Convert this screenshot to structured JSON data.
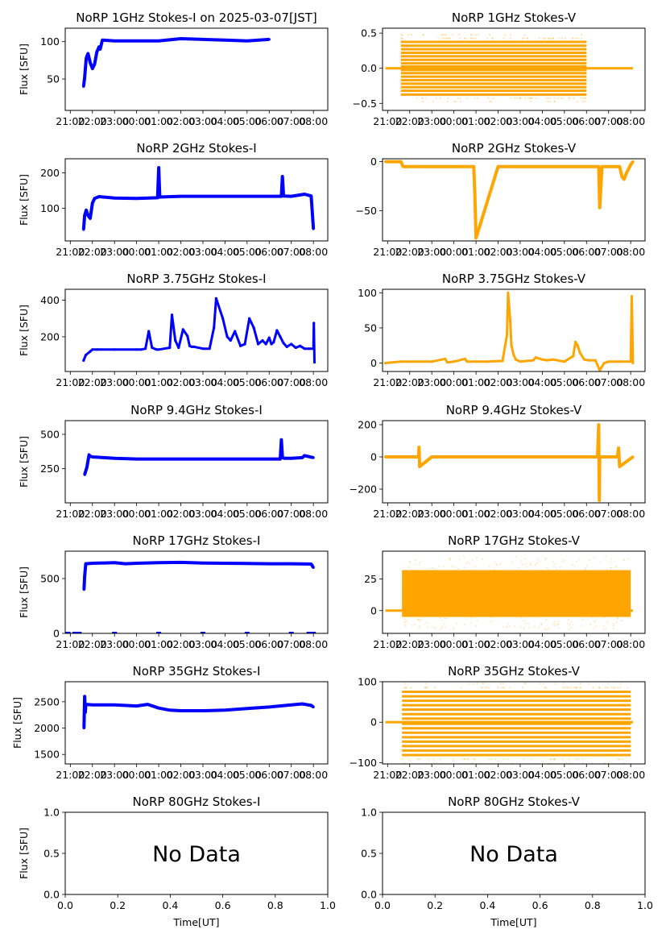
{
  "figure": {
    "ylabel": "Flux [SFU]",
    "xlabel": "Time[UT]",
    "no_data_text": "No Data",
    "time_ticks": [
      "21:00",
      "22:00",
      "23:00",
      "00:00",
      "01:00",
      "02:00",
      "03:00",
      "04:00",
      "05:00",
      "06:00",
      "07:00",
      "08:00"
    ],
    "time_tick_hours": [
      0,
      1,
      2,
      3,
      4,
      5,
      6,
      7,
      8,
      9,
      10,
      11
    ],
    "time_xlim_hours_from_2100": [
      -0.23,
      11.65
    ],
    "colors": {
      "stokes_i": "#0000ff",
      "stokes_v": "#ffa500",
      "axes": "#000000"
    }
  },
  "chart_data": [
    {
      "type": "scatter",
      "title": "NoRP 1GHz Stokes-I on 2025-03-07[JST]",
      "series_name": "Stokes-I",
      "ylabel": "Flux [SFU]",
      "ylim": [
        8,
        118
      ],
      "yticks": [
        50,
        100
      ],
      "ytick_labels": [
        "50",
        "100"
      ],
      "x_hours": [
        0.6,
        0.65,
        0.72,
        0.8,
        0.9,
        1.0,
        1.1,
        1.2,
        1.3,
        1.35,
        1.45,
        2.0,
        3.0,
        4.0,
        5.0,
        6.0,
        7.0,
        8.0,
        9.0
      ],
      "values": [
        40,
        52,
        78,
        84,
        72,
        64,
        70,
        86,
        93,
        90,
        102,
        101,
        101,
        101,
        104,
        103,
        102,
        101,
        103
      ]
    },
    {
      "type": "scatter",
      "title": "NoRP 1GHz Stokes-V",
      "series_name": "Stokes-V",
      "ylim": [
        -0.6,
        0.57
      ],
      "yticks": [
        -0.5,
        0.0,
        0.5
      ],
      "ytick_labels": [
        "−0.5",
        "0.0",
        "0.5"
      ],
      "pattern": "quantized_bands",
      "band_levels": [
        -0.375,
        -0.32,
        -0.27,
        -0.22,
        -0.17,
        -0.12,
        -0.07,
        -0.025,
        0.025,
        0.07,
        0.12,
        0.17,
        0.22,
        0.27,
        0.32,
        0.375
      ],
      "band_x_range_hours": [
        0.6,
        9.0
      ],
      "baseline_x_range_hours": [
        -0.1,
        11.1
      ],
      "baseline_value": 0.0
    },
    {
      "type": "scatter",
      "title": "NoRP 2GHz Stokes-I",
      "series_name": "Stokes-I",
      "ylabel": "Flux [SFU]",
      "ylim": [
        8,
        240
      ],
      "yticks": [
        100,
        200
      ],
      "ytick_labels": [
        "100",
        "200"
      ],
      "x_hours": [
        0.6,
        0.65,
        0.72,
        0.8,
        0.9,
        1.0,
        1.1,
        1.3,
        2.0,
        3.0,
        3.95,
        4.0,
        4.05,
        5.0,
        6.0,
        7.0,
        9.0,
        9.55,
        9.6,
        9.65,
        10.0,
        10.6,
        10.9,
        11.0
      ],
      "values": [
        40,
        80,
        95,
        80,
        72,
        115,
        128,
        133,
        129,
        128,
        130,
        215,
        132,
        134,
        134,
        134,
        134,
        134,
        190,
        135,
        134,
        140,
        135,
        42
      ]
    },
    {
      "type": "scatter",
      "title": "NoRP 2GHz Stokes-V",
      "series_name": "Stokes-V",
      "ylim": [
        -81,
        3
      ],
      "yticks": [
        -50,
        0
      ],
      "ytick_labels": [
        "−50",
        "0"
      ],
      "x_hours": [
        -0.1,
        0.6,
        0.7,
        1.0,
        2.0,
        3.0,
        3.9,
        3.95,
        4.0,
        5.0,
        6.0,
        7.0,
        9.0,
        9.55,
        9.6,
        9.7,
        10.0,
        10.5,
        10.6,
        10.7,
        10.8,
        11.0,
        11.1
      ],
      "values": [
        0,
        0,
        -5,
        -5,
        -5,
        -5,
        -5,
        -35,
        -78,
        -5,
        -5,
        -5,
        -5,
        -5,
        -47,
        -5,
        -5,
        -5,
        -15,
        -18,
        -12,
        -3,
        0
      ]
    },
    {
      "type": "line",
      "title": "NoRP 3.75GHz Stokes-I",
      "series_name": "Stokes-I",
      "ylabel": "Flux [SFU]",
      "ylim": [
        10,
        460
      ],
      "yticks": [
        200,
        400
      ],
      "ytick_labels": [
        "200",
        "400"
      ],
      "x_hours": [
        0.6,
        0.7,
        0.9,
        1.0,
        1.2,
        2.0,
        3.0,
        3.2,
        3.4,
        3.55,
        3.7,
        3.9,
        4.0,
        4.5,
        4.6,
        4.75,
        4.9,
        5.1,
        5.3,
        5.4,
        5.5,
        5.6,
        6.0,
        6.3,
        6.5,
        6.6,
        6.9,
        7.1,
        7.25,
        7.45,
        7.7,
        7.9,
        8.1,
        8.3,
        8.5,
        8.7,
        8.85,
        9.0,
        9.1,
        9.2,
        9.35,
        9.5,
        9.65,
        9.8,
        10.0,
        10.2,
        10.4,
        10.6,
        10.8,
        11.0,
        11.02,
        11.05
      ],
      "values": [
        70,
        100,
        120,
        130,
        130,
        130,
        130,
        130,
        135,
        230,
        140,
        130,
        130,
        140,
        320,
        180,
        140,
        240,
        205,
        150,
        145,
        145,
        135,
        135,
        250,
        410,
        300,
        200,
        180,
        230,
        150,
        160,
        300,
        250,
        160,
        180,
        160,
        195,
        160,
        170,
        235,
        200,
        165,
        145,
        160,
        140,
        150,
        135,
        135,
        135,
        275,
        60
      ]
    },
    {
      "type": "line",
      "title": "NoRP 3.75GHz Stokes-V",
      "series_name": "Stokes-V",
      "ylim": [
        -12,
        105
      ],
      "yticks": [
        0,
        50,
        100
      ],
      "ytick_labels": [
        "0",
        "50",
        "100"
      ],
      "x_hours": [
        -0.1,
        0.6,
        1.0,
        2.0,
        2.6,
        2.7,
        3.0,
        3.5,
        3.6,
        4.0,
        4.5,
        5.2,
        5.4,
        5.45,
        5.5,
        5.55,
        5.6,
        5.7,
        5.8,
        6.0,
        6.6,
        6.7,
        7.0,
        7.2,
        7.5,
        8.0,
        8.4,
        8.5,
        8.6,
        8.7,
        8.9,
        9.1,
        9.4,
        9.6,
        9.8,
        10.0,
        10.5,
        11.0,
        11.05,
        11.1
      ],
      "values": [
        0,
        2,
        2,
        2,
        6,
        1,
        2,
        6,
        2,
        2,
        2,
        3,
        40,
        100,
        80,
        60,
        25,
        12,
        5,
        2,
        4,
        8,
        5,
        4,
        5,
        2,
        10,
        30,
        25,
        15,
        5,
        4,
        4,
        -10,
        0,
        2,
        2,
        2,
        95,
        0
      ]
    },
    {
      "type": "scatter",
      "title": "NoRP 9.4GHz Stokes-I",
      "series_name": "Stokes-I",
      "ylabel": "Flux [SFU]",
      "ylim": [
        0,
        600
      ],
      "yticks": [
        250,
        500
      ],
      "ytick_labels": [
        "250",
        "500"
      ],
      "x_hours": [
        0.65,
        0.75,
        0.85,
        0.9,
        1.0,
        1.5,
        2.0,
        3.0,
        4.0,
        5.0,
        6.0,
        7.0,
        8.0,
        9.0,
        9.4,
        9.5,
        9.55,
        9.6,
        9.7,
        10.0,
        10.5,
        10.6,
        11.0
      ],
      "values": [
        205,
        260,
        350,
        340,
        335,
        330,
        325,
        320,
        320,
        320,
        320,
        320,
        320,
        320,
        320,
        320,
        460,
        330,
        325,
        325,
        330,
        345,
        330
      ]
    },
    {
      "type": "scatter",
      "title": "NoRP 9.4GHz Stokes-V",
      "series_name": "Stokes-V",
      "ylim": [
        -285,
        225
      ],
      "yticks": [
        -200,
        0,
        200
      ],
      "ytick_labels": [
        "−200",
        "0",
        "200"
      ],
      "x_hours": [
        -0.1,
        0.6,
        1.4,
        1.42,
        1.45,
        2.0,
        4.0,
        6.0,
        8.0,
        9.5,
        9.55,
        9.58,
        9.6,
        9.7,
        10.4,
        10.45,
        10.5,
        11.1
      ],
      "values": [
        0,
        0,
        0,
        60,
        -60,
        0,
        0,
        0,
        0,
        0,
        200,
        -270,
        0,
        0,
        0,
        55,
        -60,
        0
      ]
    },
    {
      "type": "scatter",
      "title": "NoRP 17GHz Stokes-I",
      "series_name": "Stokes-I",
      "ylabel": "Flux [SFU]",
      "ylim": [
        0,
        750
      ],
      "yticks": [
        0,
        500
      ],
      "ytick_labels": [
        "0",
        "500"
      ],
      "x_hours": [
        0.62,
        0.65,
        0.7,
        1.0,
        2.0,
        2.5,
        3.0,
        4.0,
        5.0,
        6.0,
        7.0,
        8.0,
        9.0,
        10.0,
        10.9,
        11.0
      ],
      "values": [
        400,
        520,
        635,
        640,
        645,
        635,
        640,
        645,
        648,
        642,
        640,
        638,
        635,
        635,
        632,
        600
      ],
      "zero_level_points_hours": [
        -0.1,
        0.2,
        0.4,
        2.0,
        4.0,
        6.0,
        8.0,
        10.0,
        10.8,
        11.0
      ]
    },
    {
      "type": "scatter",
      "title": "NoRP 17GHz Stokes-V",
      "series_name": "Stokes-V",
      "ylim": [
        -18,
        47
      ],
      "yticks": [
        0,
        25
      ],
      "ytick_labels": [
        "0",
        "25"
      ],
      "pattern": "dense_noise",
      "noise_center": 12,
      "noise_range": [
        -5,
        32
      ],
      "outlier_range": [
        -15,
        43
      ],
      "band_x_range_hours": [
        0.65,
        11.0
      ],
      "baseline_x_range_hours": [
        -0.1,
        11.1
      ],
      "baseline_value": 0
    },
    {
      "type": "scatter",
      "title": "NoRP 35GHz Stokes-I",
      "series_name": "Stokes-I",
      "ylabel": "Flux [SFU]",
      "ylim": [
        1320,
        2880
      ],
      "yticks": [
        1500,
        2000,
        2500
      ],
      "ytick_labels": [
        "1500",
        "2000",
        "2500"
      ],
      "x_hours": [
        0.62,
        0.65,
        0.68,
        0.7,
        1.0,
        2.0,
        3.0,
        3.5,
        4.0,
        4.5,
        5.0,
        6.0,
        7.0,
        8.0,
        9.0,
        10.0,
        10.5,
        10.9,
        11.0
      ],
      "values": [
        2000,
        2600,
        2300,
        2450,
        2440,
        2440,
        2420,
        2450,
        2380,
        2340,
        2330,
        2330,
        2340,
        2370,
        2400,
        2440,
        2460,
        2430,
        2400
      ]
    },
    {
      "type": "scatter",
      "title": "NoRP 35GHz Stokes-V",
      "series_name": "Stokes-V",
      "ylim": [
        -103,
        100
      ],
      "yticks": [
        -100,
        0,
        100
      ],
      "ytick_labels": [
        "−100",
        "0",
        "100"
      ],
      "pattern": "quantized_bands",
      "band_levels": [
        -81,
        -70,
        -59,
        -48,
        -37,
        -26,
        -15,
        -4,
        0,
        9,
        20,
        31,
        42,
        53,
        64,
        75
      ],
      "band_x_range_hours": [
        0.65,
        11.0
      ],
      "baseline_x_range_hours": [
        -0.1,
        11.1
      ],
      "baseline_value": 0
    },
    {
      "type": "scatter",
      "title": "NoRP 80GHz Stokes-I",
      "series_name": "Stokes-I",
      "ylabel": "Flux [SFU]",
      "xlabel": "Time[UT]",
      "xlim": [
        0,
        1
      ],
      "ylim": [
        0,
        1
      ],
      "xticks": [
        0.0,
        0.2,
        0.4,
        0.6,
        0.8,
        1.0
      ],
      "xtick_labels": [
        "0.0",
        "0.2",
        "0.4",
        "0.6",
        "0.8",
        "1.0"
      ],
      "yticks": [
        0.0,
        0.5,
        1.0
      ],
      "ytick_labels": [
        "0.0",
        "0.5",
        "1.0"
      ],
      "annotation": "No Data",
      "values": []
    },
    {
      "type": "scatter",
      "title": "NoRP 80GHz Stokes-V",
      "series_name": "Stokes-V",
      "xlabel": "Time[UT]",
      "xlim": [
        0,
        1
      ],
      "ylim": [
        0,
        1
      ],
      "xticks": [
        0.0,
        0.2,
        0.4,
        0.6,
        0.8,
        1.0
      ],
      "xtick_labels": [
        "0.0",
        "0.2",
        "0.4",
        "0.6",
        "0.8",
        "1.0"
      ],
      "yticks": [
        0.0,
        0.5,
        1.0
      ],
      "ytick_labels": [
        "0.0",
        "0.5",
        "1.0"
      ],
      "annotation": "No Data",
      "values": []
    }
  ]
}
